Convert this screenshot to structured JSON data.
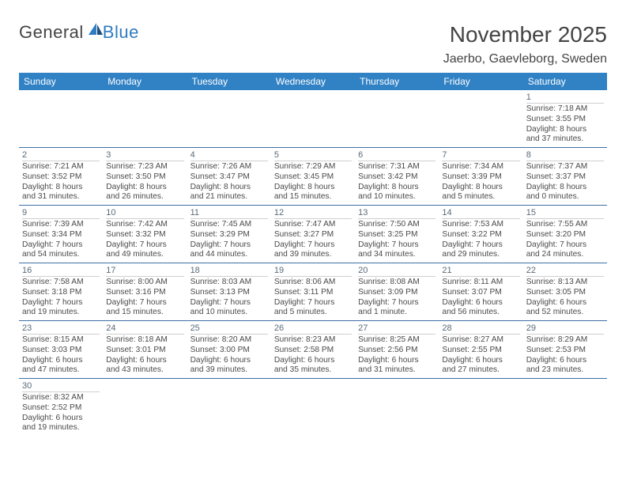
{
  "logo": {
    "text_a": "General",
    "text_b": "Blue"
  },
  "title": "November 2025",
  "location": "Jaerbo, Gaevleborg, Sweden",
  "colors": {
    "header_bg": "#3182c5",
    "header_text": "#ffffff",
    "rule": "#3f6fa6",
    "daynum_text": "#5a6a78",
    "body_text": "#4a4a4a",
    "logo_blue": "#2f7cc0",
    "page_bg": "#ffffff"
  },
  "day_headers": [
    "Sunday",
    "Monday",
    "Tuesday",
    "Wednesday",
    "Thursday",
    "Friday",
    "Saturday"
  ],
  "weeks": [
    [
      {
        "empty": true
      },
      {
        "empty": true
      },
      {
        "empty": true
      },
      {
        "empty": true
      },
      {
        "empty": true
      },
      {
        "empty": true
      },
      {
        "n": "1",
        "sr": "Sunrise: 7:18 AM",
        "ss": "Sunset: 3:55 PM",
        "d1": "Daylight: 8 hours",
        "d2": "and 37 minutes."
      }
    ],
    [
      {
        "n": "2",
        "sr": "Sunrise: 7:21 AM",
        "ss": "Sunset: 3:52 PM",
        "d1": "Daylight: 8 hours",
        "d2": "and 31 minutes."
      },
      {
        "n": "3",
        "sr": "Sunrise: 7:23 AM",
        "ss": "Sunset: 3:50 PM",
        "d1": "Daylight: 8 hours",
        "d2": "and 26 minutes."
      },
      {
        "n": "4",
        "sr": "Sunrise: 7:26 AM",
        "ss": "Sunset: 3:47 PM",
        "d1": "Daylight: 8 hours",
        "d2": "and 21 minutes."
      },
      {
        "n": "5",
        "sr": "Sunrise: 7:29 AM",
        "ss": "Sunset: 3:45 PM",
        "d1": "Daylight: 8 hours",
        "d2": "and 15 minutes."
      },
      {
        "n": "6",
        "sr": "Sunrise: 7:31 AM",
        "ss": "Sunset: 3:42 PM",
        "d1": "Daylight: 8 hours",
        "d2": "and 10 minutes."
      },
      {
        "n": "7",
        "sr": "Sunrise: 7:34 AM",
        "ss": "Sunset: 3:39 PM",
        "d1": "Daylight: 8 hours",
        "d2": "and 5 minutes."
      },
      {
        "n": "8",
        "sr": "Sunrise: 7:37 AM",
        "ss": "Sunset: 3:37 PM",
        "d1": "Daylight: 8 hours",
        "d2": "and 0 minutes."
      }
    ],
    [
      {
        "n": "9",
        "sr": "Sunrise: 7:39 AM",
        "ss": "Sunset: 3:34 PM",
        "d1": "Daylight: 7 hours",
        "d2": "and 54 minutes."
      },
      {
        "n": "10",
        "sr": "Sunrise: 7:42 AM",
        "ss": "Sunset: 3:32 PM",
        "d1": "Daylight: 7 hours",
        "d2": "and 49 minutes."
      },
      {
        "n": "11",
        "sr": "Sunrise: 7:45 AM",
        "ss": "Sunset: 3:29 PM",
        "d1": "Daylight: 7 hours",
        "d2": "and 44 minutes."
      },
      {
        "n": "12",
        "sr": "Sunrise: 7:47 AM",
        "ss": "Sunset: 3:27 PM",
        "d1": "Daylight: 7 hours",
        "d2": "and 39 minutes."
      },
      {
        "n": "13",
        "sr": "Sunrise: 7:50 AM",
        "ss": "Sunset: 3:25 PM",
        "d1": "Daylight: 7 hours",
        "d2": "and 34 minutes."
      },
      {
        "n": "14",
        "sr": "Sunrise: 7:53 AM",
        "ss": "Sunset: 3:22 PM",
        "d1": "Daylight: 7 hours",
        "d2": "and 29 minutes."
      },
      {
        "n": "15",
        "sr": "Sunrise: 7:55 AM",
        "ss": "Sunset: 3:20 PM",
        "d1": "Daylight: 7 hours",
        "d2": "and 24 minutes."
      }
    ],
    [
      {
        "n": "16",
        "sr": "Sunrise: 7:58 AM",
        "ss": "Sunset: 3:18 PM",
        "d1": "Daylight: 7 hours",
        "d2": "and 19 minutes."
      },
      {
        "n": "17",
        "sr": "Sunrise: 8:00 AM",
        "ss": "Sunset: 3:16 PM",
        "d1": "Daylight: 7 hours",
        "d2": "and 15 minutes."
      },
      {
        "n": "18",
        "sr": "Sunrise: 8:03 AM",
        "ss": "Sunset: 3:13 PM",
        "d1": "Daylight: 7 hours",
        "d2": "and 10 minutes."
      },
      {
        "n": "19",
        "sr": "Sunrise: 8:06 AM",
        "ss": "Sunset: 3:11 PM",
        "d1": "Daylight: 7 hours",
        "d2": "and 5 minutes."
      },
      {
        "n": "20",
        "sr": "Sunrise: 8:08 AM",
        "ss": "Sunset: 3:09 PM",
        "d1": "Daylight: 7 hours",
        "d2": "and 1 minute."
      },
      {
        "n": "21",
        "sr": "Sunrise: 8:11 AM",
        "ss": "Sunset: 3:07 PM",
        "d1": "Daylight: 6 hours",
        "d2": "and 56 minutes."
      },
      {
        "n": "22",
        "sr": "Sunrise: 8:13 AM",
        "ss": "Sunset: 3:05 PM",
        "d1": "Daylight: 6 hours",
        "d2": "and 52 minutes."
      }
    ],
    [
      {
        "n": "23",
        "sr": "Sunrise: 8:15 AM",
        "ss": "Sunset: 3:03 PM",
        "d1": "Daylight: 6 hours",
        "d2": "and 47 minutes."
      },
      {
        "n": "24",
        "sr": "Sunrise: 8:18 AM",
        "ss": "Sunset: 3:01 PM",
        "d1": "Daylight: 6 hours",
        "d2": "and 43 minutes."
      },
      {
        "n": "25",
        "sr": "Sunrise: 8:20 AM",
        "ss": "Sunset: 3:00 PM",
        "d1": "Daylight: 6 hours",
        "d2": "and 39 minutes."
      },
      {
        "n": "26",
        "sr": "Sunrise: 8:23 AM",
        "ss": "Sunset: 2:58 PM",
        "d1": "Daylight: 6 hours",
        "d2": "and 35 minutes."
      },
      {
        "n": "27",
        "sr": "Sunrise: 8:25 AM",
        "ss": "Sunset: 2:56 PM",
        "d1": "Daylight: 6 hours",
        "d2": "and 31 minutes."
      },
      {
        "n": "28",
        "sr": "Sunrise: 8:27 AM",
        "ss": "Sunset: 2:55 PM",
        "d1": "Daylight: 6 hours",
        "d2": "and 27 minutes."
      },
      {
        "n": "29",
        "sr": "Sunrise: 8:29 AM",
        "ss": "Sunset: 2:53 PM",
        "d1": "Daylight: 6 hours",
        "d2": "and 23 minutes."
      }
    ],
    [
      {
        "n": "30",
        "sr": "Sunrise: 8:32 AM",
        "ss": "Sunset: 2:52 PM",
        "d1": "Daylight: 6 hours",
        "d2": "and 19 minutes."
      },
      {
        "empty": true
      },
      {
        "empty": true
      },
      {
        "empty": true
      },
      {
        "empty": true
      },
      {
        "empty": true
      },
      {
        "empty": true
      }
    ]
  ]
}
